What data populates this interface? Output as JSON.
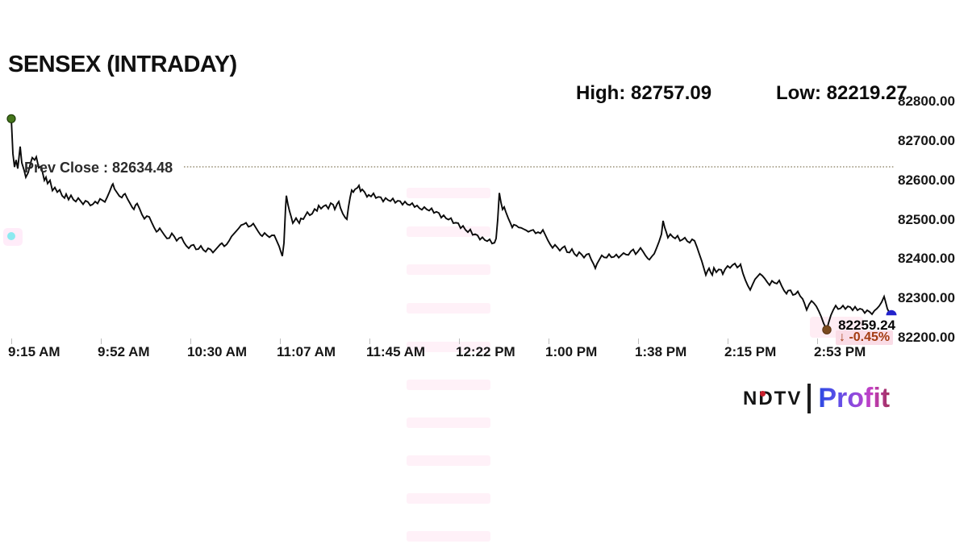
{
  "header": {
    "title": "SENSEX (INTRADAY)",
    "high_label": "High: 82757.09",
    "low_label": "Low: 82219.27"
  },
  "branding": {
    "ndtv": "NDTV",
    "profit": "Profit"
  },
  "chart_data": {
    "type": "line",
    "title": "SENSEX (INTRADAY)",
    "series_name": "SENSEX",
    "high": 82757.09,
    "low": 82219.27,
    "prev_close": 82634.48,
    "last": 82259.24,
    "change_pct": -0.45,
    "prev_close_label": "Prev Close : 82634.48",
    "last_price_label": "82259.24",
    "change_label": "↓ -0.45%",
    "x_tick_labels": [
      "9:15 AM",
      "9:52 AM",
      "10:30 AM",
      "11:07 AM",
      "11:45 AM",
      "12:22 PM",
      "1:00 PM",
      "1:38 PM",
      "2:15 PM",
      "2:53 PM"
    ],
    "y_tick_values": [
      82800,
      82700,
      82600,
      82500,
      82400,
      82300,
      82200
    ],
    "y_tick_labels": [
      "82800.00",
      "82700.00",
      "82600.00",
      "82500.00",
      "82400.00",
      "82300.00",
      "82200.00"
    ],
    "ylim": [
      82200,
      82800
    ],
    "grid": false,
    "legend": false,
    "line_color": "#0a0a0a",
    "prev_close_line_color": "#9a9178",
    "marker_colors": {
      "open": "#45761c",
      "low": "#7b4a1e",
      "last": "#2323cb"
    },
    "points": [
      [
        14,
        82757
      ],
      [
        16,
        82668
      ],
      [
        18,
        82634
      ],
      [
        20,
        82652
      ],
      [
        22,
        82630
      ],
      [
        25,
        82686
      ],
      [
        27,
        82645
      ],
      [
        30,
        82625
      ],
      [
        32,
        82608
      ],
      [
        35,
        82620
      ],
      [
        38,
        82645
      ],
      [
        40,
        82658
      ],
      [
        43,
        82652
      ],
      [
        45,
        82660
      ],
      [
        48,
        82632
      ],
      [
        51,
        82636
      ],
      [
        53,
        82618
      ],
      [
        55,
        82600
      ],
      [
        57,
        82608
      ],
      [
        59,
        82592
      ],
      [
        62,
        82600
      ],
      [
        65,
        82574
      ],
      [
        68,
        82582
      ],
      [
        71,
        82570
      ],
      [
        74,
        82576
      ],
      [
        77,
        82561
      ],
      [
        80,
        82555
      ],
      [
        82,
        82565
      ],
      [
        85,
        82551
      ],
      [
        88,
        82562
      ],
      [
        91,
        82551
      ],
      [
        94,
        82546
      ],
      [
        97,
        82555
      ],
      [
        100,
        82547
      ],
      [
        103,
        82539
      ],
      [
        106,
        82548
      ],
      [
        109,
        82545
      ],
      [
        112,
        82536
      ],
      [
        115,
        82539
      ],
      [
        118,
        82546
      ],
      [
        121,
        82541
      ],
      [
        124,
        82553
      ],
      [
        127,
        82549
      ],
      [
        130,
        82545
      ],
      [
        133,
        82558
      ],
      [
        136,
        82572
      ],
      [
        139,
        82588
      ],
      [
        140,
        82591
      ],
      [
        142,
        82578
      ],
      [
        145,
        82569
      ],
      [
        148,
        82560
      ],
      [
        151,
        82556
      ],
      [
        153,
        82563
      ],
      [
        155,
        82566
      ],
      [
        158,
        82553
      ],
      [
        161,
        82542
      ],
      [
        164,
        82531
      ],
      [
        166,
        82526
      ],
      [
        168,
        82537
      ],
      [
        170,
        82541
      ],
      [
        173,
        82528
      ],
      [
        176,
        82513
      ],
      [
        179,
        82502
      ],
      [
        182,
        82509
      ],
      [
        185,
        82507
      ],
      [
        188,
        82493
      ],
      [
        191,
        82480
      ],
      [
        194,
        82469
      ],
      [
        196,
        82472
      ],
      [
        198,
        82478
      ],
      [
        201,
        82469
      ],
      [
        204,
        82460
      ],
      [
        207,
        82452
      ],
      [
        210,
        82453
      ],
      [
        213,
        82465
      ],
      [
        216,
        82457
      ],
      [
        219,
        82446
      ],
      [
        222,
        82453
      ],
      [
        225,
        82455
      ],
      [
        228,
        82442
      ],
      [
        231,
        82433
      ],
      [
        234,
        82427
      ],
      [
        237,
        82434
      ],
      [
        240,
        82436
      ],
      [
        243,
        82424
      ],
      [
        246,
        82425
      ],
      [
        249,
        82433
      ],
      [
        252,
        82423
      ],
      [
        255,
        82418
      ],
      [
        258,
        82427
      ],
      [
        261,
        82424
      ],
      [
        264,
        82416
      ],
      [
        267,
        82423
      ],
      [
        270,
        82430
      ],
      [
        273,
        82437
      ],
      [
        275,
        82440
      ],
      [
        278,
        82432
      ],
      [
        281,
        82437
      ],
      [
        284,
        82446
      ],
      [
        287,
        82457
      ],
      [
        290,
        82464
      ],
      [
        293,
        82471
      ],
      [
        296,
        82478
      ],
      [
        299,
        82486
      ],
      [
        302,
        82488
      ],
      [
        305,
        82492
      ],
      [
        308,
        82482
      ],
      [
        311,
        82484
      ],
      [
        314,
        82490
      ],
      [
        317,
        82480
      ],
      [
        320,
        82470
      ],
      [
        323,
        82461
      ],
      [
        325,
        82458
      ],
      [
        328,
        82466
      ],
      [
        331,
        82460
      ],
      [
        334,
        82455
      ],
      [
        337,
        82460
      ],
      [
        340,
        82460
      ],
      [
        343,
        82446
      ],
      [
        346,
        82432
      ],
      [
        348,
        82419
      ],
      [
        350,
        82407
      ],
      [
        352,
        82440
      ],
      [
        354,
        82530
      ],
      [
        355,
        82561
      ],
      [
        357,
        82538
      ],
      [
        359,
        82521
      ],
      [
        361,
        82507
      ],
      [
        363,
        82491
      ],
      [
        365,
        82497
      ],
      [
        367,
        82504
      ],
      [
        369,
        82497
      ],
      [
        371,
        82491
      ],
      [
        373,
        82503
      ],
      [
        376,
        82501
      ],
      [
        379,
        82512
      ],
      [
        381,
        82519
      ],
      [
        384,
        82511
      ],
      [
        387,
        82515
      ],
      [
        390,
        82527
      ],
      [
        393,
        82522
      ],
      [
        395,
        82536
      ],
      [
        398,
        82528
      ],
      [
        401,
        82534
      ],
      [
        404,
        82537
      ],
      [
        407,
        82528
      ],
      [
        410,
        82542
      ],
      [
        413,
        82538
      ],
      [
        415,
        82526
      ],
      [
        418,
        82540
      ],
      [
        420,
        82546
      ],
      [
        422,
        82530
      ],
      [
        425,
        82515
      ],
      [
        428,
        82505
      ],
      [
        430,
        82501
      ],
      [
        432,
        82532
      ],
      [
        434,
        82556
      ],
      [
        436,
        82575
      ],
      [
        438,
        82570
      ],
      [
        440,
        82577
      ],
      [
        443,
        82581
      ],
      [
        445,
        82587
      ],
      [
        447,
        82572
      ],
      [
        449,
        82577
      ],
      [
        452,
        82570
      ],
      [
        455,
        82558
      ],
      [
        457,
        82563
      ],
      [
        460,
        82559
      ],
      [
        463,
        82567
      ],
      [
        466,
        82555
      ],
      [
        469,
        82558
      ],
      [
        472,
        82557
      ],
      [
        475,
        82546
      ],
      [
        478,
        82555
      ],
      [
        481,
        82550
      ],
      [
        484,
        82547
      ],
      [
        487,
        82554
      ],
      [
        490,
        82543
      ],
      [
        493,
        82548
      ],
      [
        496,
        82547
      ],
      [
        499,
        82538
      ],
      [
        502,
        82546
      ],
      [
        505,
        82539
      ],
      [
        508,
        82537
      ],
      [
        511,
        82542
      ],
      [
        514,
        82532
      ],
      [
        517,
        82536
      ],
      [
        520,
        82529
      ],
      [
        523,
        82525
      ],
      [
        526,
        82532
      ],
      [
        529,
        82526
      ],
      [
        532,
        82523
      ],
      [
        535,
        82529
      ],
      [
        538,
        82517
      ],
      [
        541,
        82520
      ],
      [
        544,
        82517
      ],
      [
        547,
        82505
      ],
      [
        550,
        82511
      ],
      [
        553,
        82503
      ],
      [
        556,
        82500
      ],
      [
        559,
        82504
      ],
      [
        562,
        82491
      ],
      [
        565,
        82492
      ],
      [
        568,
        82491
      ],
      [
        571,
        82478
      ],
      [
        574,
        82484
      ],
      [
        577,
        82474
      ],
      [
        580,
        82468
      ],
      [
        583,
        82475
      ],
      [
        586,
        82461
      ],
      [
        589,
        82463
      ],
      [
        592,
        82460
      ],
      [
        595,
        82449
      ],
      [
        598,
        82455
      ],
      [
        601,
        82448
      ],
      [
        604,
        82445
      ],
      [
        607,
        82450
      ],
      [
        610,
        82439
      ],
      [
        613,
        82441
      ],
      [
        615,
        82452
      ],
      [
        617,
        82500
      ],
      [
        619,
        82568
      ],
      [
        621,
        82544
      ],
      [
        623,
        82526
      ],
      [
        625,
        82532
      ],
      [
        627,
        82520
      ],
      [
        630,
        82504
      ],
      [
        633,
        82490
      ],
      [
        635,
        82480
      ],
      [
        637,
        82487
      ],
      [
        640,
        82485
      ],
      [
        643,
        82480
      ],
      [
        646,
        82479
      ],
      [
        649,
        82476
      ],
      [
        652,
        82473
      ],
      [
        655,
        82469
      ],
      [
        658,
        82472
      ],
      [
        661,
        82474
      ],
      [
        664,
        82465
      ],
      [
        667,
        82468
      ],
      [
        670,
        82465
      ],
      [
        673,
        82474
      ],
      [
        676,
        82461
      ],
      [
        679,
        82448
      ],
      [
        682,
        82437
      ],
      [
        685,
        82428
      ],
      [
        688,
        82436
      ],
      [
        691,
        82429
      ],
      [
        694,
        82421
      ],
      [
        697,
        82428
      ],
      [
        700,
        82432
      ],
      [
        703,
        82417
      ],
      [
        706,
        82416
      ],
      [
        709,
        82425
      ],
      [
        712,
        82413
      ],
      [
        715,
        82407
      ],
      [
        718,
        82417
      ],
      [
        721,
        82411
      ],
      [
        724,
        82403
      ],
      [
        727,
        82411
      ],
      [
        730,
        82413
      ],
      [
        733,
        82398
      ],
      [
        736,
        82386
      ],
      [
        738,
        82376
      ],
      [
        740,
        82387
      ],
      [
        743,
        82398
      ],
      [
        746,
        82409
      ],
      [
        749,
        82404
      ],
      [
        752,
        82403
      ],
      [
        755,
        82412
      ],
      [
        758,
        82404
      ],
      [
        761,
        82405
      ],
      [
        764,
        82411
      ],
      [
        767,
        82403
      ],
      [
        770,
        82409
      ],
      [
        773,
        82415
      ],
      [
        776,
        82411
      ],
      [
        779,
        82410
      ],
      [
        782,
        82419
      ],
      [
        785,
        82424
      ],
      [
        788,
        82412
      ],
      [
        791,
        82419
      ],
      [
        794,
        82428
      ],
      [
        797,
        82419
      ],
      [
        800,
        82409
      ],
      [
        803,
        82401
      ],
      [
        805,
        82398
      ],
      [
        808,
        82406
      ],
      [
        811,
        82413
      ],
      [
        814,
        82428
      ],
      [
        817,
        82444
      ],
      [
        820,
        82463
      ],
      [
        822,
        82497
      ],
      [
        824,
        82480
      ],
      [
        826,
        82468
      ],
      [
        828,
        82454
      ],
      [
        831,
        82463
      ],
      [
        834,
        82456
      ],
      [
        837,
        82452
      ],
      [
        840,
        82459
      ],
      [
        843,
        82446
      ],
      [
        846,
        82449
      ],
      [
        849,
        82454
      ],
      [
        852,
        82445
      ],
      [
        855,
        82441
      ],
      [
        858,
        82450
      ],
      [
        861,
        82446
      ],
      [
        864,
        82430
      ],
      [
        867,
        82412
      ],
      [
        870,
        82394
      ],
      [
        873,
        82373
      ],
      [
        875,
        82359
      ],
      [
        877,
        82369
      ],
      [
        879,
        82376
      ],
      [
        881,
        82366
      ],
      [
        883,
        82359
      ],
      [
        885,
        82377
      ],
      [
        888,
        82366
      ],
      [
        891,
        82373
      ],
      [
        894,
        82372
      ],
      [
        896,
        82361
      ],
      [
        899,
        82374
      ],
      [
        902,
        82382
      ],
      [
        905,
        82377
      ],
      [
        908,
        82384
      ],
      [
        911,
        82388
      ],
      [
        914,
        82378
      ],
      [
        917,
        82383
      ],
      [
        918,
        82386
      ],
      [
        921,
        82363
      ],
      [
        924,
        82346
      ],
      [
        927,
        82332
      ],
      [
        930,
        82321
      ],
      [
        933,
        82335
      ],
      [
        936,
        82348
      ],
      [
        939,
        82355
      ],
      [
        942,
        82362
      ],
      [
        945,
        82357
      ],
      [
        948,
        82350
      ],
      [
        951,
        82341
      ],
      [
        954,
        82333
      ],
      [
        957,
        82344
      ],
      [
        960,
        82339
      ],
      [
        963,
        82337
      ],
      [
        966,
        82345
      ],
      [
        969,
        82331
      ],
      [
        972,
        82319
      ],
      [
        975,
        82311
      ],
      [
        977,
        82319
      ],
      [
        980,
        82320
      ],
      [
        983,
        82308
      ],
      [
        986,
        82310
      ],
      [
        989,
        82317
      ],
      [
        992,
        82305
      ],
      [
        995,
        82298
      ],
      [
        997,
        82288
      ],
      [
        1000,
        82270
      ],
      [
        1003,
        82284
      ],
      [
        1006,
        82293
      ],
      [
        1009,
        82287
      ],
      [
        1012,
        82279
      ],
      [
        1015,
        82267
      ],
      [
        1018,
        82253
      ],
      [
        1021,
        82236
      ],
      [
        1024,
        82223
      ],
      [
        1025,
        82219
      ],
      [
        1027,
        82236
      ],
      [
        1030,
        82256
      ],
      [
        1033,
        82270
      ],
      [
        1036,
        82281
      ],
      [
        1039,
        82272
      ],
      [
        1042,
        82274
      ],
      [
        1045,
        82281
      ],
      [
        1048,
        82272
      ],
      [
        1051,
        82279
      ],
      [
        1054,
        82277
      ],
      [
        1057,
        82269
      ],
      [
        1060,
        82278
      ],
      [
        1063,
        82269
      ],
      [
        1066,
        82273
      ],
      [
        1069,
        82271
      ],
      [
        1072,
        82262
      ],
      [
        1075,
        82269
      ],
      [
        1078,
        82265
      ],
      [
        1081,
        82259
      ],
      [
        1084,
        82268
      ],
      [
        1087,
        82273
      ],
      [
        1090,
        82280
      ],
      [
        1093,
        82290
      ],
      [
        1096,
        82304
      ],
      [
        1098,
        82289
      ],
      [
        1100,
        82273
      ],
      [
        1102,
        82265
      ],
      [
        1105,
        82259
      ]
    ]
  }
}
